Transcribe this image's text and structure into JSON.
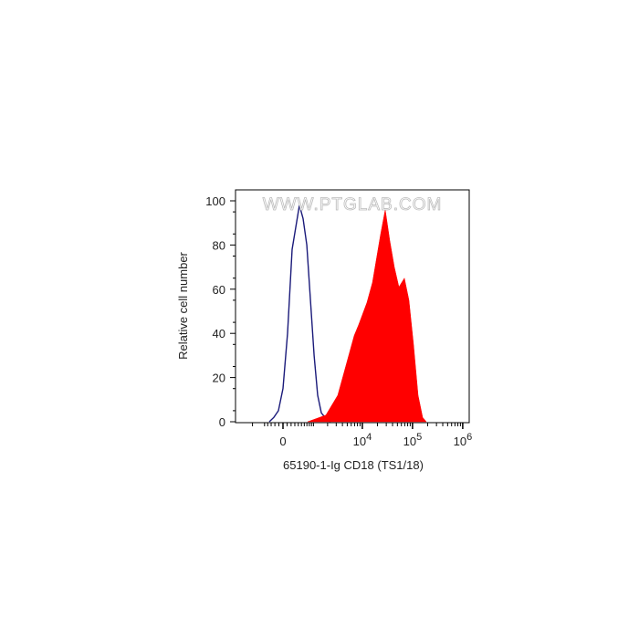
{
  "chart_data": {
    "type": "area",
    "title": "",
    "xlabel": "65190-1-Ig CD18 (TS1/18)",
    "ylabel": "Relative cell number",
    "watermark": "WWW.PTGLAB.COM",
    "x_scale": "biexponential",
    "ylim": [
      0,
      100
    ],
    "y_ticks": [
      "0",
      "20",
      "40",
      "60",
      "80",
      "100"
    ],
    "x_ticks": [
      {
        "value": 0,
        "base": "0",
        "exp": ""
      },
      {
        "value": 10000,
        "base": "10",
        "exp": "4"
      },
      {
        "value": 100000,
        "base": "10",
        "exp": "5"
      },
      {
        "value": 1000000,
        "base": "10",
        "exp": "6"
      }
    ],
    "grid": false,
    "series": [
      {
        "style": "outline",
        "color": "#1a1a7a",
        "x": [
          -352,
          -227,
          -111,
          0,
          111,
          227,
          326,
          435,
          557,
          695,
          851,
          1032,
          1236,
          1481,
          1928,
          2291
        ],
        "y": [
          0,
          2,
          5,
          15,
          40,
          78,
          88,
          98,
          92,
          80,
          55,
          30,
          12,
          4,
          1,
          0
        ]
      },
      {
        "style": "filled",
        "color": "#ff0000",
        "x": [
          731,
          1846,
          3225,
          4918,
          6885,
          8495,
          12393,
          15912,
          23197,
          28614,
          35295,
          43500,
          53600,
          68906,
          85000,
          104779,
          129186,
          159273,
          188466
        ],
        "y": [
          0,
          3,
          12,
          27,
          39,
          44,
          54,
          63,
          85,
          96,
          82,
          70,
          61,
          65,
          55,
          35,
          12,
          2,
          0
        ]
      }
    ]
  }
}
